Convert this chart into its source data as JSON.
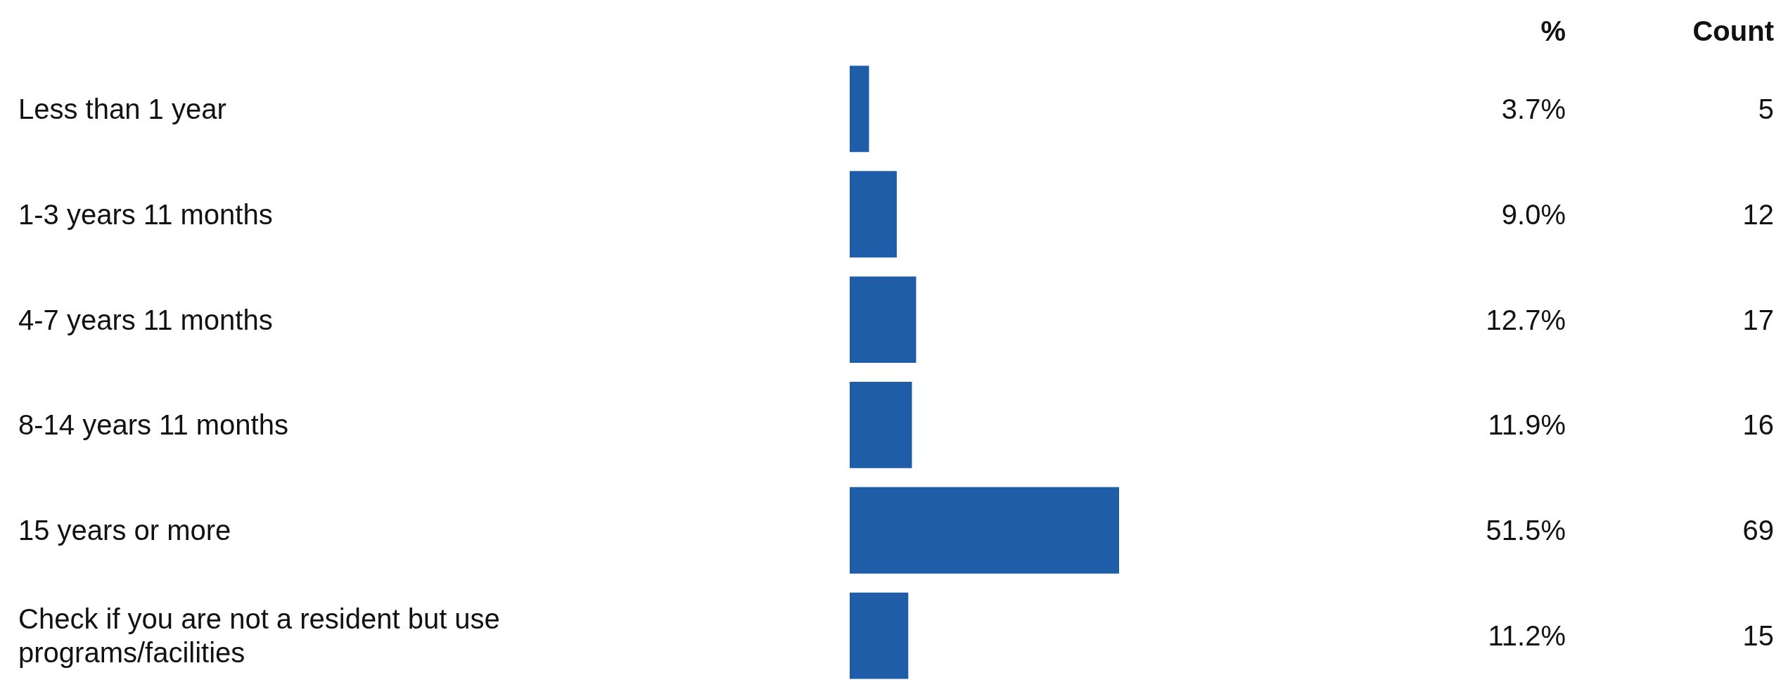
{
  "chart_data": {
    "type": "bar",
    "orientation": "horizontal",
    "categories": [
      "Less than 1 year",
      "1-3 years 11 months",
      "4-7 years 11 months",
      "8-14 years 11 months",
      "15 years or more",
      "Check if you are not a resident but use programs/facilities"
    ],
    "series": [
      {
        "name": "%",
        "color": "#1f5da9",
        "values": [
          3.7,
          9.0,
          12.7,
          11.9,
          51.5,
          11.2
        ],
        "value_labels": [
          "3.7%",
          "9.0%",
          "12.7%",
          "11.9%",
          "51.5%",
          "11.2%"
        ]
      }
    ],
    "annotations": [
      "Count",
      "5",
      "12",
      "17",
      "16",
      "69",
      "15"
    ]
  }
}
